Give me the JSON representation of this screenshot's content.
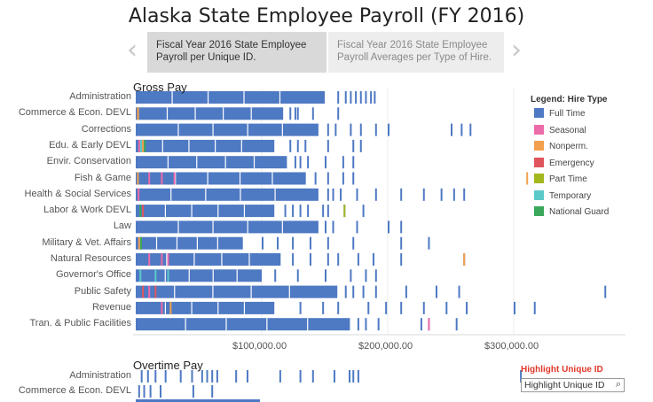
{
  "title": "Alaska State Employee Payroll (FY 2016)",
  "story_points": [
    {
      "line1": "Fiscal Year 2016 State Employee",
      "line2": "Payroll per Unique ID."
    },
    {
      "line1": "Fiscal Year 2016 State Employee",
      "line2": "Payroll Averages per Type of Hire."
    }
  ],
  "nav": {
    "prev": "‹",
    "next": "›"
  },
  "gross_title": "Gross Pay",
  "overtime_title": "Overtime Pay",
  "legend": {
    "title": "Legend: Hire Type",
    "items": [
      {
        "label": "Full Time",
        "color": "#4e79c3"
      },
      {
        "label": "Seasonal",
        "color": "#ec6ba9"
      },
      {
        "label": "Nonperm.",
        "color": "#f2a04e"
      },
      {
        "label": "Emergency",
        "color": "#e0555d"
      },
      {
        "label": "Part Time",
        "color": "#a4b71d"
      },
      {
        "label": "Temporary",
        "color": "#5cc9c9"
      },
      {
        "label": "National Guard",
        "color": "#39a85a"
      }
    ]
  },
  "highlight": {
    "title": "Highlight Unique ID",
    "placeholder": "Highlight Unique ID",
    "icon": "search-icon"
  },
  "chart_data": [
    {
      "type": "strip",
      "title": "Gross Pay",
      "x_ticks": [
        "$100,000.00",
        "$200,000.00",
        "$300,000.00"
      ],
      "x_tick_values": [
        100000,
        200000,
        300000
      ],
      "xlim": [
        0,
        390000
      ],
      "categories": [
        "Administration",
        "Commerce & Econ. DEVL",
        "Corrections",
        "Edu. & Early DEVL",
        "Envir. Conservation",
        "Fish & Game",
        "Health & Social Services",
        "Labor & Work DEVL",
        "Law",
        "Military & Vet. Affairs",
        "Natural Resources",
        "Governor's Office",
        "Public Safety",
        "Revenue",
        "Tran. & Public Facilities"
      ],
      "series": [
        {
          "category": "Administration",
          "dense_to": 150000,
          "other": [],
          "ticks": [
            160000,
            166000,
            170000,
            174000,
            178000,
            182000,
            186000,
            189000
          ]
        },
        {
          "category": "Commerce & Econ. DEVL",
          "dense_to": 117000,
          "other": [
            [
              "#f2a04e",
              1200
            ]
          ],
          "ticks": [
            122000,
            126000,
            128000,
            140000,
            160000
          ]
        },
        {
          "category": "Corrections",
          "dense_to": 145000,
          "other": [],
          "ticks": [
            152000,
            158000,
            170000,
            178000,
            190000,
            200000,
            250000,
            258000,
            265000
          ]
        },
        {
          "category": "Edu. & Early DEVL",
          "dense_to": 110000,
          "other": [
            [
              "#ec6ba9",
              2000
            ],
            [
              "#5cc9c9",
              3500
            ],
            [
              "#f2a04e",
              5000
            ],
            [
              "#39a85a",
              6500
            ]
          ],
          "ticks": [
            122000,
            128000,
            134000,
            152000,
            172000,
            178000
          ]
        },
        {
          "category": "Envir. Conservation",
          "dense_to": 120000,
          "other": [],
          "ticks": [
            126000,
            130000,
            136000,
            150000,
            164000,
            172000
          ]
        },
        {
          "category": "Fish & Game",
          "dense_to": 135000,
          "other": [
            [
              "#ec6ba9",
              10000
            ],
            [
              "#ec6ba9",
              20000
            ],
            [
              "#ec6ba9",
              30000
            ]
          ],
          "ticks": [
            142000,
            152000,
            164000,
            172000
          ]
        },
        {
          "category": "Health & Social Services",
          "dense_to": 145000,
          "other": [
            [
              "#ec6ba9",
              1500
            ]
          ],
          "ticks": [
            152000,
            156000,
            162000,
            175000,
            190000,
            210000,
            228000,
            242000,
            252000,
            260000
          ]
        },
        {
          "category": "Labor & Work DEVL",
          "dense_to": 110000,
          "other": [
            [
              "#39a85a",
              3000
            ],
            [
              "#e0555d",
              5000
            ]
          ],
          "ticks": [
            118000,
            124000,
            130000,
            136000,
            148000,
            152000,
            165000,
            180000
          ]
        },
        {
          "category": "Law",
          "dense_to": 145000,
          "other": [],
          "ticks": [
            150000,
            156000,
            175000,
            200000,
            210000
          ]
        },
        {
          "category": "Military & Vet. Affairs",
          "dense_to": 85000,
          "other": [
            [
              "#f2a04e",
              2000
            ],
            [
              "#39a85a",
              3500
            ]
          ],
          "ticks": [
            100000,
            112000,
            124000,
            138000,
            152000,
            172000,
            210000,
            232000
          ]
        },
        {
          "category": "Natural Resources",
          "dense_to": 115000,
          "other": [
            [
              "#ec6ba9",
              10000
            ],
            [
              "#ec6ba9",
              20000
            ],
            [
              "#ec6ba9",
              25000
            ]
          ],
          "ticks": [
            124000,
            138000,
            152000,
            160000,
            176000,
            188000,
            210000,
            260000
          ]
        },
        {
          "category": "Governor's Office",
          "dense_to": 100000,
          "other": [
            [
              "#5cc9c9",
              3000
            ],
            [
              "#5cc9c9",
              15000
            ],
            [
              "#5cc9c9",
              25000
            ]
          ],
          "ticks": [
            110000,
            128000,
            150000,
            170000,
            182000,
            190000
          ]
        },
        {
          "category": "Public Safety",
          "dense_to": 160000,
          "other": [
            [
              "#e0555d",
              5000
            ],
            [
              "#ec6ba9",
              10000
            ],
            [
              "#e0555d",
              15000
            ]
          ],
          "ticks": [
            166000,
            172000,
            180000,
            190000,
            214000,
            238000,
            256000,
            372000
          ]
        },
        {
          "category": "Revenue",
          "dense_to": 110000,
          "other": [
            [
              "#ec6ba9",
              20000
            ],
            [
              "#f2a04e",
              27000
            ]
          ],
          "ticks": [
            130000,
            148000,
            160000,
            184000,
            198000,
            210000,
            228000,
            246000,
            262000,
            300000,
            316000
          ]
        },
        {
          "category": "Tran. & Public Facilities",
          "dense_to": 170000,
          "other": [],
          "ticks": [
            176000,
            182000,
            192000,
            226000,
            232000,
            254000
          ]
        }
      ],
      "legend_placement": "right",
      "grid": true
    },
    {
      "type": "strip",
      "title": "Overtime Pay",
      "categories": [
        "Administration",
        "Commerce & Econ. DEVL"
      ],
      "series": [
        {
          "category": "Administration",
          "ticks": [
            4000,
            9000,
            15000,
            23000,
            35000,
            44000,
            52000,
            56000,
            60000,
            64000,
            79000,
            88000,
            114000,
            130000,
            140000,
            157000,
            169000,
            172000,
            176000,
            305000
          ]
        },
        {
          "category": "Commerce & Econ. DEVL",
          "ticks": [
            2000,
            6000,
            11000,
            19000,
            45000,
            60000
          ]
        }
      ]
    }
  ]
}
